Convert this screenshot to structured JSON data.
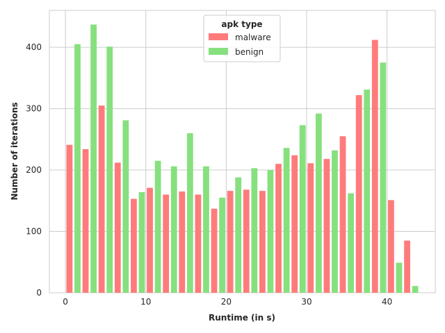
{
  "chart_data": {
    "type": "bar",
    "xlabel": "Runtime (in s)",
    "ylabel": "Number of iterations",
    "xlim": [
      -2,
      46
    ],
    "ylim": [
      0,
      460
    ],
    "x_ticks": [
      0,
      10,
      20,
      30,
      40
    ],
    "y_ticks": [
      0,
      100,
      200,
      300,
      400
    ],
    "grid": true,
    "legend": {
      "title": "apk type",
      "placement": "top-center"
    },
    "bin_centers": [
      1,
      3,
      5,
      7,
      9,
      11,
      13,
      15,
      17,
      19,
      21,
      23,
      25,
      27,
      29,
      31,
      33,
      35,
      37,
      39,
      41,
      43
    ],
    "series": [
      {
        "name": "malware",
        "color": "#ff7b7b",
        "values": [
          241,
          234,
          305,
          212,
          153,
          171,
          160,
          165,
          160,
          137,
          166,
          168,
          166,
          210,
          224,
          211,
          218,
          255,
          322,
          412,
          151,
          85
        ]
      },
      {
        "name": "benign",
        "color": "#86e07e",
        "values": [
          405,
          437,
          401,
          281,
          164,
          215,
          206,
          260,
          206,
          155,
          188,
          203,
          200,
          236,
          273,
          292,
          232,
          162,
          331,
          375,
          49,
          11
        ]
      }
    ]
  }
}
